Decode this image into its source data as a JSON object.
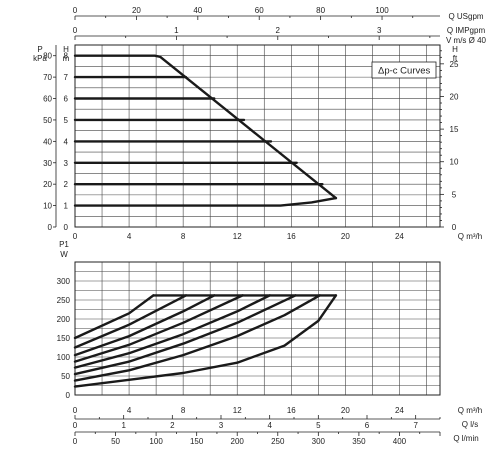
{
  "chart_data": [
    {
      "type": "line",
      "title": "",
      "legend": "Δp-c Curves",
      "axes": {
        "bottom": {
          "label": "Q m³/h",
          "ticks": [
            0,
            4,
            8,
            12,
            16,
            20,
            24
          ]
        },
        "top_usgpm": {
          "label": "Q USgpm",
          "ticks": [
            0,
            20,
            40,
            60,
            80,
            100
          ]
        },
        "top_impgpm": {
          "label": "Q IMPgpm",
          "ticks": [
            0,
            1,
            2,
            3
          ]
        },
        "top_velocity": {
          "label": "V m/s Ø 40",
          "ticks": []
        },
        "left_kpa": {
          "label": "P kPa",
          "ticks": [
            0,
            10,
            20,
            30,
            40,
            50,
            60,
            70,
            80
          ]
        },
        "left_m": {
          "label": "H m",
          "ticks": [
            0,
            1,
            2,
            3,
            4,
            5,
            6,
            7,
            8
          ]
        },
        "right_ft": {
          "label": "H ft",
          "ticks": [
            0,
            5,
            10,
            15,
            20,
            25
          ]
        }
      },
      "xlim": [
        0,
        27
      ],
      "ylim": [
        0,
        8.5
      ],
      "series": [
        {
          "head_m": 1,
          "x": [
            0,
            15.2,
            17.5,
            19.3
          ],
          "y": [
            1,
            1,
            1.15,
            1.35
          ]
        },
        {
          "head_m": 2,
          "x": [
            0,
            18.3
          ],
          "y": [
            2,
            2
          ]
        },
        {
          "head_m": 3,
          "x": [
            0,
            16.4
          ],
          "y": [
            3,
            3
          ]
        },
        {
          "head_m": 4,
          "x": [
            0,
            14.5
          ],
          "y": [
            4,
            4
          ]
        },
        {
          "head_m": 5,
          "x": [
            0,
            12.5
          ],
          "y": [
            5,
            5
          ]
        },
        {
          "head_m": 6,
          "x": [
            0,
            10.3
          ],
          "y": [
            6,
            6
          ]
        },
        {
          "head_m": 7,
          "x": [
            0,
            8.2
          ],
          "y": [
            7,
            7
          ]
        },
        {
          "head_m": 8,
          "x": [
            0,
            5.9,
            6.3
          ],
          "y": [
            8,
            8,
            7.95
          ]
        },
        {
          "name": "max",
          "x": [
            6.3,
            19.3
          ],
          "y": [
            7.95,
            1.35
          ]
        }
      ]
    },
    {
      "type": "line",
      "title": "",
      "axes": {
        "left": {
          "label": "P1 W",
          "ticks": [
            0,
            50,
            100,
            150,
            200,
            250,
            300
          ]
        },
        "bottom": {
          "label": "Q m³/h",
          "ticks": [
            0,
            4,
            8,
            12,
            16,
            20,
            24
          ]
        },
        "bottom_ls": {
          "label": "Q l/s",
          "ticks": [
            0,
            1,
            2,
            3,
            4,
            5,
            6,
            7
          ]
        },
        "bottom_lmin": {
          "label": "Q l/min",
          "ticks": [
            0,
            50,
            100,
            150,
            200,
            250,
            300,
            350,
            400
          ]
        }
      },
      "xlim": [
        0,
        27
      ],
      "ylim": [
        0,
        350
      ],
      "series": [
        {
          "head_m": 1,
          "x": [
            0,
            4,
            8,
            12,
            15.5,
            18,
            19.3
          ],
          "y": [
            22,
            40,
            58,
            85,
            130,
            195,
            262
          ]
        },
        {
          "head_m": 2,
          "x": [
            0,
            4,
            8,
            12,
            15.5,
            18.1
          ],
          "y": [
            38,
            65,
            105,
            155,
            210,
            262
          ]
        },
        {
          "head_m": 3,
          "x": [
            0,
            4,
            8,
            12,
            16.3
          ],
          "y": [
            55,
            88,
            135,
            190,
            262
          ]
        },
        {
          "head_m": 4,
          "x": [
            0,
            4,
            8,
            12,
            14.4
          ],
          "y": [
            72,
            110,
            160,
            220,
            262
          ]
        },
        {
          "head_m": 5,
          "x": [
            0,
            4,
            8,
            12.4
          ],
          "y": [
            88,
            132,
            190,
            262
          ]
        },
        {
          "head_m": 6,
          "x": [
            0,
            4,
            8,
            10.3
          ],
          "y": [
            105,
            155,
            220,
            262
          ]
        },
        {
          "head_m": 7,
          "x": [
            0,
            4,
            8.2
          ],
          "y": [
            125,
            185,
            262
          ]
        },
        {
          "head_m": 8,
          "x": [
            0,
            4,
            5.8
          ],
          "y": [
            150,
            215,
            262
          ]
        },
        {
          "name": "max",
          "x": [
            5.8,
            19.3
          ],
          "y": [
            262,
            262
          ]
        }
      ]
    }
  ]
}
